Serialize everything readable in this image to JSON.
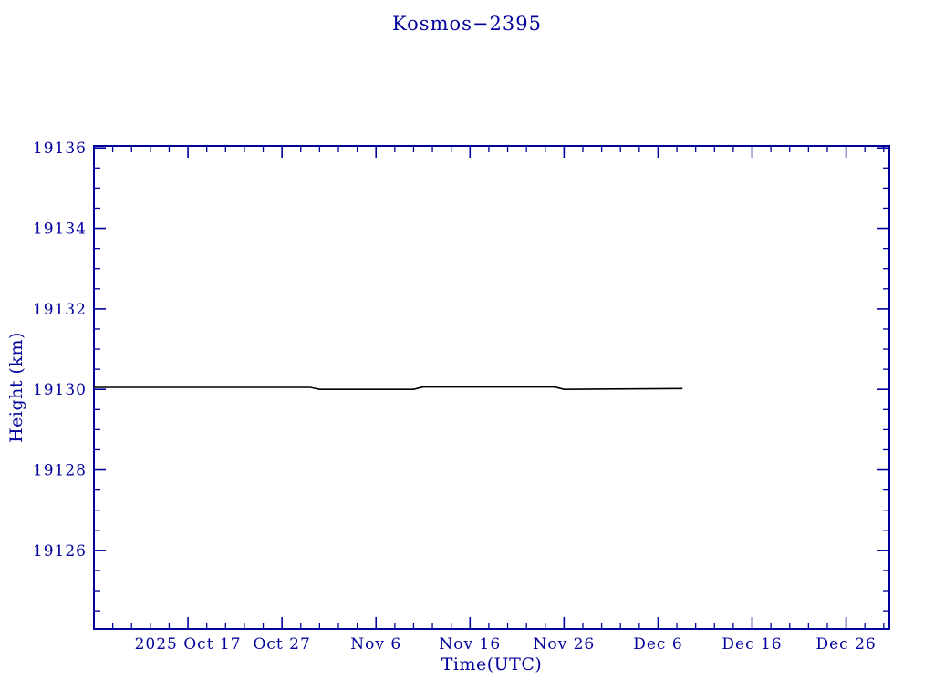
{
  "chart_data": {
    "type": "line",
    "title": "Kosmos−2395",
    "xlabel": "Time(UTC)",
    "ylabel": "Height (km)",
    "axis_color": "#00009b",
    "line_color": "#000000",
    "grid": false,
    "legend": "none",
    "xlim_days": [
      0,
      84.6
    ],
    "ylim": [
      19124.05,
      19136.05
    ],
    "x_ticks": [
      {
        "label": "2025 Oct 17",
        "day": 10
      },
      {
        "label": "Oct 27",
        "day": 20
      },
      {
        "label": "Nov 6",
        "day": 30
      },
      {
        "label": "Nov 16",
        "day": 40
      },
      {
        "label": "Nov 26",
        "day": 50
      },
      {
        "label": "Dec 6",
        "day": 60
      },
      {
        "label": "Dec 16",
        "day": 70
      },
      {
        "label": "Dec 26",
        "day": 80
      }
    ],
    "x_minor_step_days": 2,
    "y_ticks": [
      19126,
      19128,
      19130,
      19132,
      19134,
      19136
    ],
    "y_minor_step": 0.5,
    "series": [
      {
        "name": "height",
        "points": [
          [
            0,
            19130.05
          ],
          [
            23,
            19130.05
          ],
          [
            24,
            19130.0
          ],
          [
            34,
            19130.0
          ],
          [
            35,
            19130.06
          ],
          [
            49,
            19130.06
          ],
          [
            50,
            19130.0
          ],
          [
            62.6,
            19130.02
          ]
        ]
      }
    ]
  }
}
